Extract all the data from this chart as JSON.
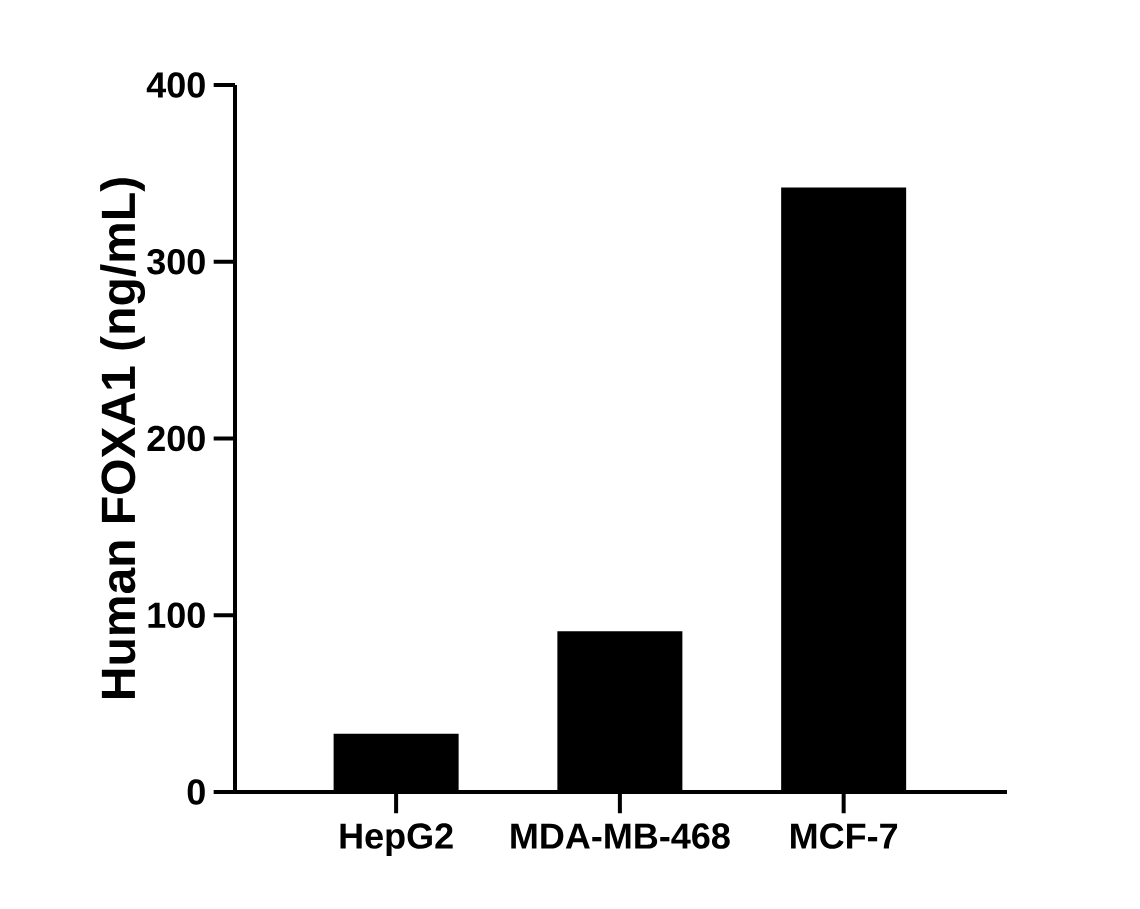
{
  "chart_data": {
    "type": "bar",
    "ylabel": "Human FOXA1 (ng/mL)",
    "categories": [
      "HepG2",
      "MDA-MB-468",
      "MCF-7"
    ],
    "values": [
      33,
      91,
      342
    ],
    "color": "#000000",
    "ylim": [
      0,
      400
    ],
    "yticks": [
      0,
      100,
      200,
      300,
      400
    ]
  }
}
